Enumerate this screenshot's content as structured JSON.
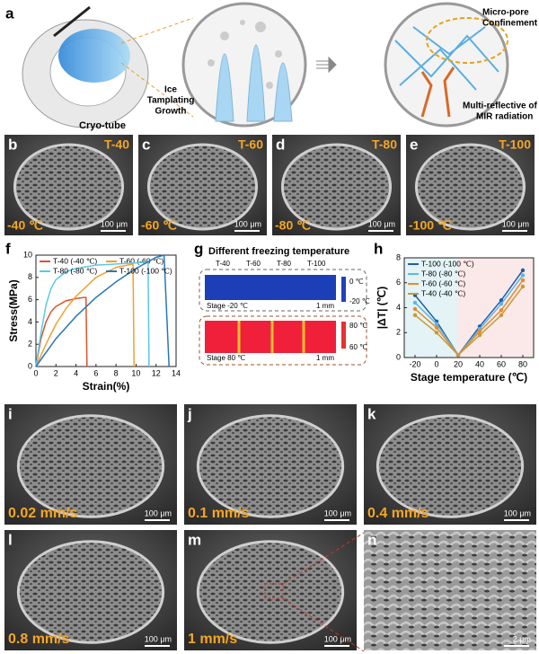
{
  "panel_a": {
    "label": "a",
    "cryo_tube": "Cryo-tube",
    "ice_growth": [
      "Ice",
      "Tamplating",
      "Growth"
    ],
    "micro_pore": [
      "Micro-pore",
      "Confinement"
    ],
    "multi_reflective": [
      "Multi-reflective of",
      "MIR radiation"
    ]
  },
  "sem_temperature": [
    {
      "label": "b",
      "sample": "T-40",
      "temperature": "-40 ℃",
      "scale": "100 μm"
    },
    {
      "label": "c",
      "sample": "T-60",
      "temperature": "-60 ℃",
      "scale": "100 μm"
    },
    {
      "label": "d",
      "sample": "T-80",
      "temperature": "-80 ℃",
      "scale": "100 μm"
    },
    {
      "label": "e",
      "sample": "T-100",
      "temperature": "-100 ℃",
      "scale": "100 μm"
    }
  ],
  "thermal": {
    "label": "g",
    "title": "Different freezing temperature",
    "samples": [
      "T-40",
      "T-60",
      "T-80",
      "T-100"
    ],
    "cold": {
      "max": "0 ℃",
      "min": "-20 ℃",
      "stage": "Stage -20 ℃",
      "scale": "1 mm"
    },
    "hot": {
      "max": "80 ℃",
      "min": "60 ℃",
      "stage": "Stage 80 ℃",
      "scale": "1 mm"
    }
  },
  "sem_speed": [
    {
      "label": "i",
      "speed": "0.02 mm/s",
      "scale": "100 μm"
    },
    {
      "label": "j",
      "speed": "0.1 mm/s",
      "scale": "100 μm"
    },
    {
      "label": "k",
      "speed": "0.4 mm/s",
      "scale": "100 μm"
    },
    {
      "label": "l",
      "speed": "0.8 mm/s",
      "scale": "100 μm"
    },
    {
      "label": "m",
      "speed": "1 mm/s",
      "scale": "100 μm"
    },
    {
      "label": "n",
      "scale": "2 μm"
    }
  ],
  "chart_data": [
    {
      "type": "line",
      "panel_label": "f",
      "x_label": "Strain(%)",
      "y_label": "Stress(MPa)",
      "xlim": [
        0,
        14
      ],
      "xticks": [
        0,
        2,
        4,
        6,
        8,
        10,
        12,
        14
      ],
      "ylim": [
        0,
        10
      ],
      "yticks": [
        0,
        2,
        4,
        6,
        8,
        10
      ],
      "legend": "upper left",
      "legend_columns": 2,
      "series": [
        {
          "name": "T-40 (-40 ℃)",
          "color": "#d9542b",
          "x": [
            0,
            0.5,
            1,
            1.5,
            2,
            3,
            4,
            4.8,
            5.0,
            5.1
          ],
          "values": [
            0,
            2.5,
            4,
            4.9,
            5.4,
            5.9,
            6.1,
            6.2,
            6.2,
            0
          ]
        },
        {
          "name": "T-60 (-60 ℃)",
          "color": "#f0a030",
          "x": [
            0,
            1,
            2,
            3,
            4,
            6,
            8,
            9.7,
            9.8
          ],
          "values": [
            0,
            2,
            3.8,
            5.2,
            6.3,
            8,
            8.9,
            9.2,
            0
          ]
        },
        {
          "name": "T-80 (-80 ℃)",
          "color": "#5bc8e8",
          "x": [
            0,
            0.5,
            1,
            1.5,
            2,
            3,
            4,
            6,
            8,
            10,
            11.2,
            11.3
          ],
          "values": [
            0,
            3,
            5.5,
            7,
            7.8,
            8.5,
            8.8,
            9.1,
            9.2,
            9.3,
            9.4,
            0
          ]
        },
        {
          "name": "T-100 (-100 ℃)",
          "color": "#2a77b8",
          "x": [
            0,
            2,
            4,
            6,
            8,
            10,
            12,
            12.8,
            13.3
          ],
          "values": [
            0,
            2.5,
            4.5,
            6.2,
            7.6,
            8.8,
            9.8,
            10,
            0
          ]
        }
      ]
    },
    {
      "type": "line",
      "panel_label": "h",
      "x_label": "Stage temperature (℃)",
      "y_label": "|ΔT| (℃)",
      "x": [
        -20,
        0,
        20,
        40,
        60,
        80
      ],
      "xlim": [
        -30,
        90
      ],
      "xticks": [
        -20,
        0,
        20,
        40,
        60,
        80
      ],
      "ylim": [
        0,
        8
      ],
      "yticks": [
        0,
        2,
        4,
        6,
        8
      ],
      "legend": "upper left",
      "legend_columns": 1,
      "markers": true,
      "series": [
        {
          "name": "T-100 (-100 ℃)",
          "color": "#1f5fa8",
          "values": [
            5.0,
            2.9,
            0.2,
            2.5,
            4.6,
            7.0
          ]
        },
        {
          "name": "T-80 (-80 ℃)",
          "color": "#5bb6e8",
          "values": [
            4.4,
            2.7,
            0.2,
            2.3,
            4.3,
            6.6
          ]
        },
        {
          "name": "T-60 (-60 ℃)",
          "color": "#e88a2a",
          "values": [
            3.9,
            2.4,
            0.2,
            2.1,
            3.8,
            6.2
          ]
        },
        {
          "name": "T-40 (-40 ℃)",
          "color": "#c79a3a",
          "values": [
            3.4,
            2.0,
            0.2,
            1.8,
            3.4,
            5.7
          ]
        }
      ]
    }
  ]
}
